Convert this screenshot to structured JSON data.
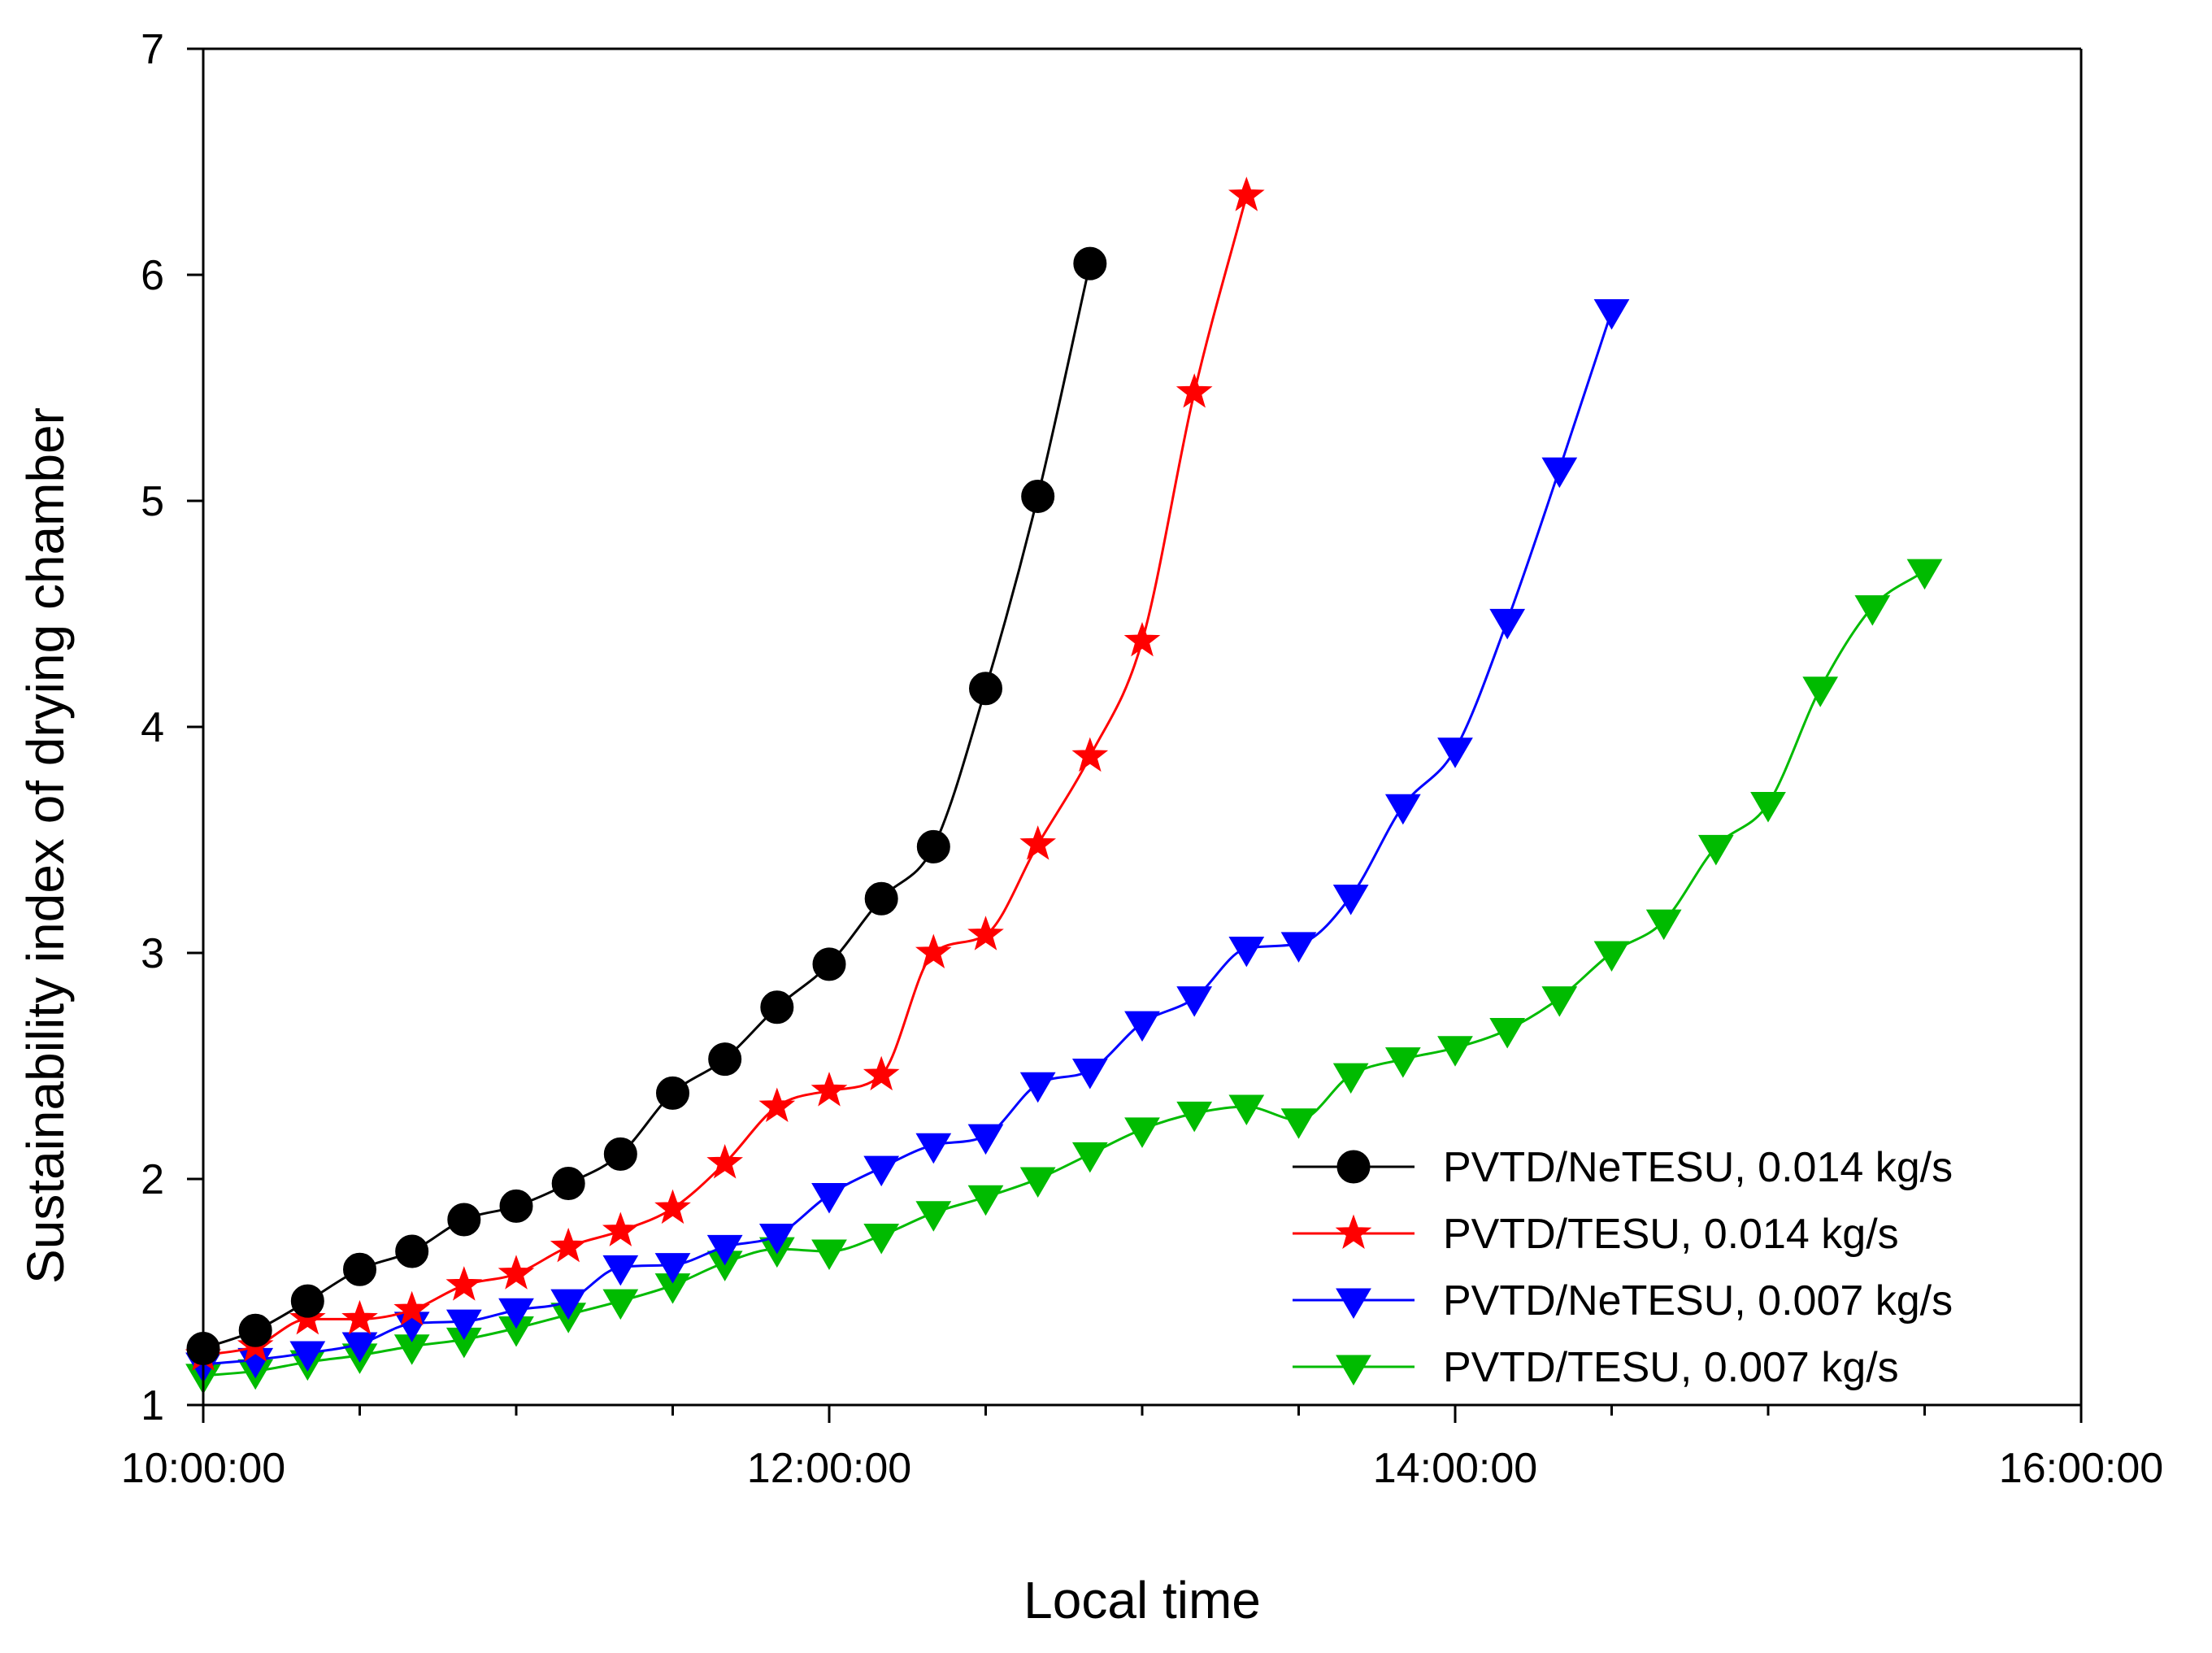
{
  "chart_data": {
    "type": "line",
    "title": "",
    "xlabel": "Local time",
    "ylabel": "Sustainability index of drying chamber",
    "x_unit": "hours",
    "xlim": [
      10,
      16
    ],
    "ylim": [
      1,
      7
    ],
    "x_ticks": [
      {
        "value": 10,
        "label": "10:00:00"
      },
      {
        "value": 12,
        "label": "12:00:00"
      },
      {
        "value": 14,
        "label": "14:00:00"
      },
      {
        "value": 16,
        "label": "16:00:00"
      }
    ],
    "x_minor_step": 0.5,
    "y_ticks": [
      {
        "value": 1,
        "label": "1"
      },
      {
        "value": 2,
        "label": "2"
      },
      {
        "value": 3,
        "label": "3"
      },
      {
        "value": 4,
        "label": "4"
      },
      {
        "value": 5,
        "label": "5"
      },
      {
        "value": 6,
        "label": "6"
      },
      {
        "value": 7,
        "label": "7"
      }
    ],
    "grid": false,
    "legend_position": "bottom-right",
    "series": [
      {
        "name": "PVTD/NeTESU, 0.014 kg/s",
        "color": "#000000",
        "marker": "circle",
        "x": [
          10.0,
          10.1667,
          10.3333,
          10.5,
          10.6667,
          10.8333,
          11.0,
          11.1667,
          11.3333,
          11.5,
          11.6667,
          11.8333,
          12.0,
          12.1667,
          12.3333,
          12.5,
          12.6667,
          12.8333
        ],
        "y": [
          1.25,
          1.33,
          1.46,
          1.6,
          1.68,
          1.82,
          1.88,
          1.98,
          2.11,
          2.38,
          2.53,
          2.76,
          2.95,
          3.24,
          3.47,
          4.17,
          5.02,
          6.05
        ]
      },
      {
        "name": "PVTD/TESU, 0.014 kg/s",
        "color": "#ff0000",
        "marker": "star",
        "x": [
          10.0,
          10.1667,
          10.3333,
          10.5,
          10.6667,
          10.8333,
          11.0,
          11.1667,
          11.3333,
          11.5,
          11.6667,
          11.8333,
          12.0,
          12.1667,
          12.3333,
          12.5,
          12.6667,
          12.8333,
          13.0,
          13.1667,
          13.3333
        ],
        "y": [
          1.22,
          1.26,
          1.38,
          1.38,
          1.42,
          1.53,
          1.58,
          1.7,
          1.77,
          1.87,
          2.07,
          2.32,
          2.39,
          2.46,
          3.0,
          3.08,
          3.48,
          3.87,
          4.38,
          5.48,
          6.35
        ]
      },
      {
        "name": "PVTD/NeTESU, 0.007 kg/s",
        "color": "#0000ff",
        "marker": "triangle-down",
        "x": [
          10.0,
          10.1667,
          10.3333,
          10.5,
          10.6667,
          10.8333,
          11.0,
          11.1667,
          11.3333,
          11.5,
          11.6667,
          11.8333,
          12.0,
          12.1667,
          12.3333,
          12.5,
          12.6667,
          12.8333,
          13.0,
          13.1667,
          13.3333,
          13.5,
          13.6667,
          13.8333,
          14.0,
          14.1667,
          14.3333,
          14.5
        ],
        "y": [
          1.18,
          1.2,
          1.23,
          1.27,
          1.36,
          1.37,
          1.42,
          1.46,
          1.61,
          1.62,
          1.7,
          1.75,
          1.93,
          2.05,
          2.15,
          2.19,
          2.42,
          2.48,
          2.69,
          2.8,
          3.02,
          3.04,
          3.25,
          3.65,
          3.9,
          4.47,
          5.14,
          5.84
        ]
      },
      {
        "name": "PVTD/TESU, 0.007 kg/s",
        "color": "#00bb00",
        "marker": "triangle-down",
        "x": [
          10.0,
          10.1667,
          10.3333,
          10.5,
          10.6667,
          10.8333,
          11.0,
          11.1667,
          11.3333,
          11.5,
          11.6667,
          11.8333,
          12.0,
          12.1667,
          12.3333,
          12.5,
          12.6667,
          12.8333,
          13.0,
          13.1667,
          13.3333,
          13.5,
          13.6667,
          13.8333,
          14.0,
          14.1667,
          14.3333,
          14.5,
          14.6667,
          14.8333,
          15.0,
          15.1667,
          15.3333,
          15.5
        ],
        "y": [
          1.13,
          1.15,
          1.19,
          1.22,
          1.26,
          1.29,
          1.34,
          1.4,
          1.46,
          1.53,
          1.63,
          1.69,
          1.68,
          1.75,
          1.85,
          1.92,
          2.0,
          2.11,
          2.22,
          2.29,
          2.32,
          2.26,
          2.46,
          2.53,
          2.58,
          2.66,
          2.8,
          3.0,
          3.14,
          3.47,
          3.66,
          4.17,
          4.53,
          4.69
        ]
      }
    ]
  }
}
